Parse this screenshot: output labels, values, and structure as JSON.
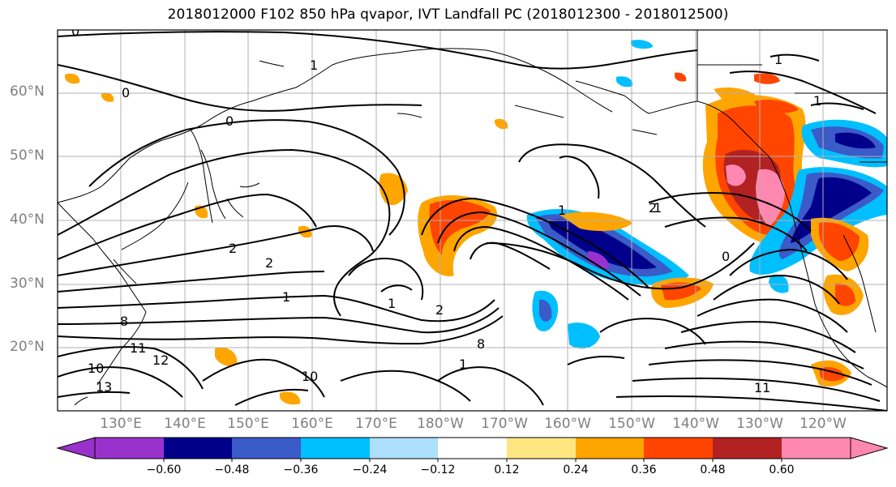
{
  "title": "2018012000 F102 850 hPa qvapor, IVT Landfall PC (2018012300 - 2018012500)",
  "lat_labels": [
    "60°N",
    "50°N",
    "40°N",
    "30°N",
    "20°N"
  ],
  "lon_labels": [
    "130°E",
    "140°E",
    "150°E",
    "160°E",
    "170°E",
    "180°W",
    "170°W",
    "160°W",
    "150°W",
    "140°W",
    "130°W",
    "120°W"
  ],
  "colorbar": {
    "colors": [
      "#9932CC",
      "#00008B",
      "#3A5BC8",
      "#00BFFF",
      "#ADDFFF",
      "#FFFFFF",
      "#FFE680",
      "#FFA500",
      "#FF4500",
      "#B22222",
      "#FF88B0"
    ],
    "tick_labels": [
      "−0.60",
      "−0.48",
      "−0.36",
      "−0.24",
      "−0.12",
      "0.12",
      "0.24",
      "0.36",
      "0.48",
      "0.60"
    ]
  },
  "contour_labels": [
    "0",
    "0",
    "1",
    "0",
    "1",
    "1",
    "2",
    "2",
    "1",
    "1",
    "2",
    "1",
    "8",
    "11",
    "12",
    "10",
    "13",
    "2",
    "8",
    "10",
    "1",
    "1",
    "11",
    "0"
  ]
}
